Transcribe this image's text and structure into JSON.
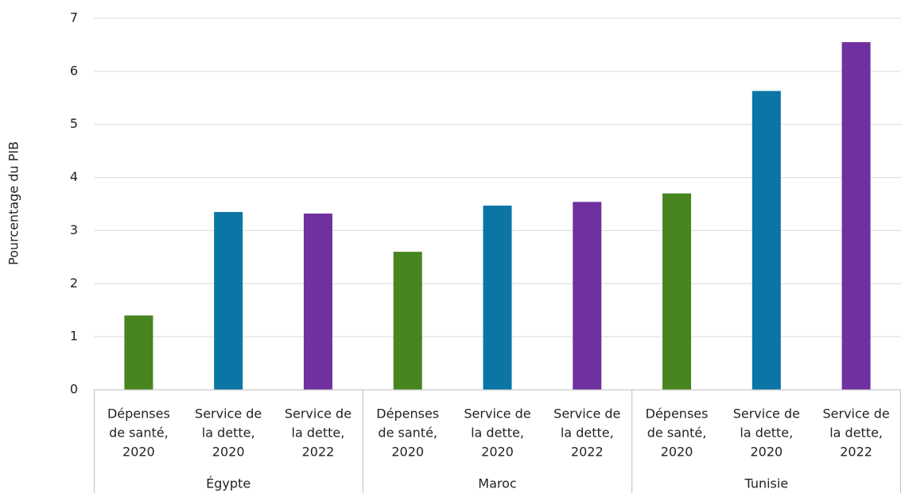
{
  "chart_data": {
    "type": "bar",
    "y_label": "Pourcentage du PIB",
    "groups": [
      {
        "name": "Égypte",
        "categories": [
          [
            "Dépenses",
            "de santé,",
            "2020"
          ],
          [
            "Service de",
            "la dette,",
            "2020"
          ],
          [
            "Service de",
            "la dette,",
            "2022"
          ]
        ],
        "values": [
          1.4,
          3.35,
          3.32
        ],
        "colors": [
          "#46851f",
          "#0b76a6",
          "#7030a0"
        ]
      },
      {
        "name": "Maroc",
        "categories": [
          [
            "Dépenses",
            "de santé,",
            "2020"
          ],
          [
            "Service de",
            "la dette,",
            "2020"
          ],
          [
            "Service de",
            "la dette,",
            "2022"
          ]
        ],
        "values": [
          2.6,
          3.47,
          3.54
        ],
        "colors": [
          "#46851f",
          "#0b76a6",
          "#7030a0"
        ]
      },
      {
        "name": "Tunisie",
        "categories": [
          [
            "Dépenses",
            "de santé,",
            "2020"
          ],
          [
            "Service de",
            "la dette,",
            "2020"
          ],
          [
            "Service de",
            "la dette,",
            "2022"
          ]
        ],
        "values": [
          3.7,
          5.63,
          6.55
        ],
        "colors": [
          "#46851f",
          "#0b76a6",
          "#7030a0"
        ]
      }
    ],
    "ylim": [
      0,
      7
    ],
    "yticks": [
      0,
      1,
      2,
      3,
      4,
      5,
      6,
      7
    ],
    "grid": true
  }
}
